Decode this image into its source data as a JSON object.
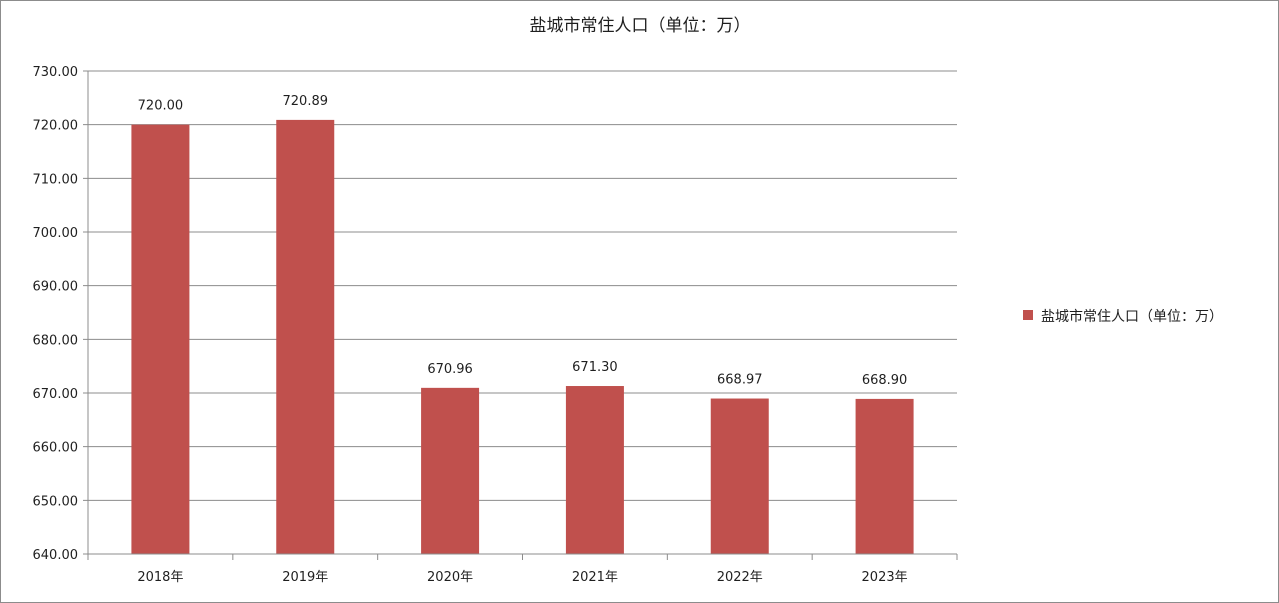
{
  "chart_data": {
    "type": "bar",
    "title": "盐城市常住人口（单位：万）",
    "categories": [
      "2018年",
      "2019年",
      "2020年",
      "2021年",
      "2022年",
      "2023年"
    ],
    "series": [
      {
        "name": "盐城市常住人口（单位：万）",
        "values": [
          720.0,
          720.89,
          670.96,
          671.3,
          668.97,
          668.9
        ],
        "data_labels": [
          "720.00",
          "720.89",
          "670.96",
          "671.30",
          "668.97",
          "668.90"
        ],
        "color": "#c0504d"
      }
    ],
    "ylim": [
      640,
      730
    ],
    "y_ticks": [
      "640.00",
      "650.00",
      "660.00",
      "670.00",
      "680.00",
      "690.00",
      "700.00",
      "710.00",
      "720.00",
      "730.00"
    ],
    "xlabel": "",
    "ylabel": "",
    "grid": true,
    "legend_position": "right"
  }
}
